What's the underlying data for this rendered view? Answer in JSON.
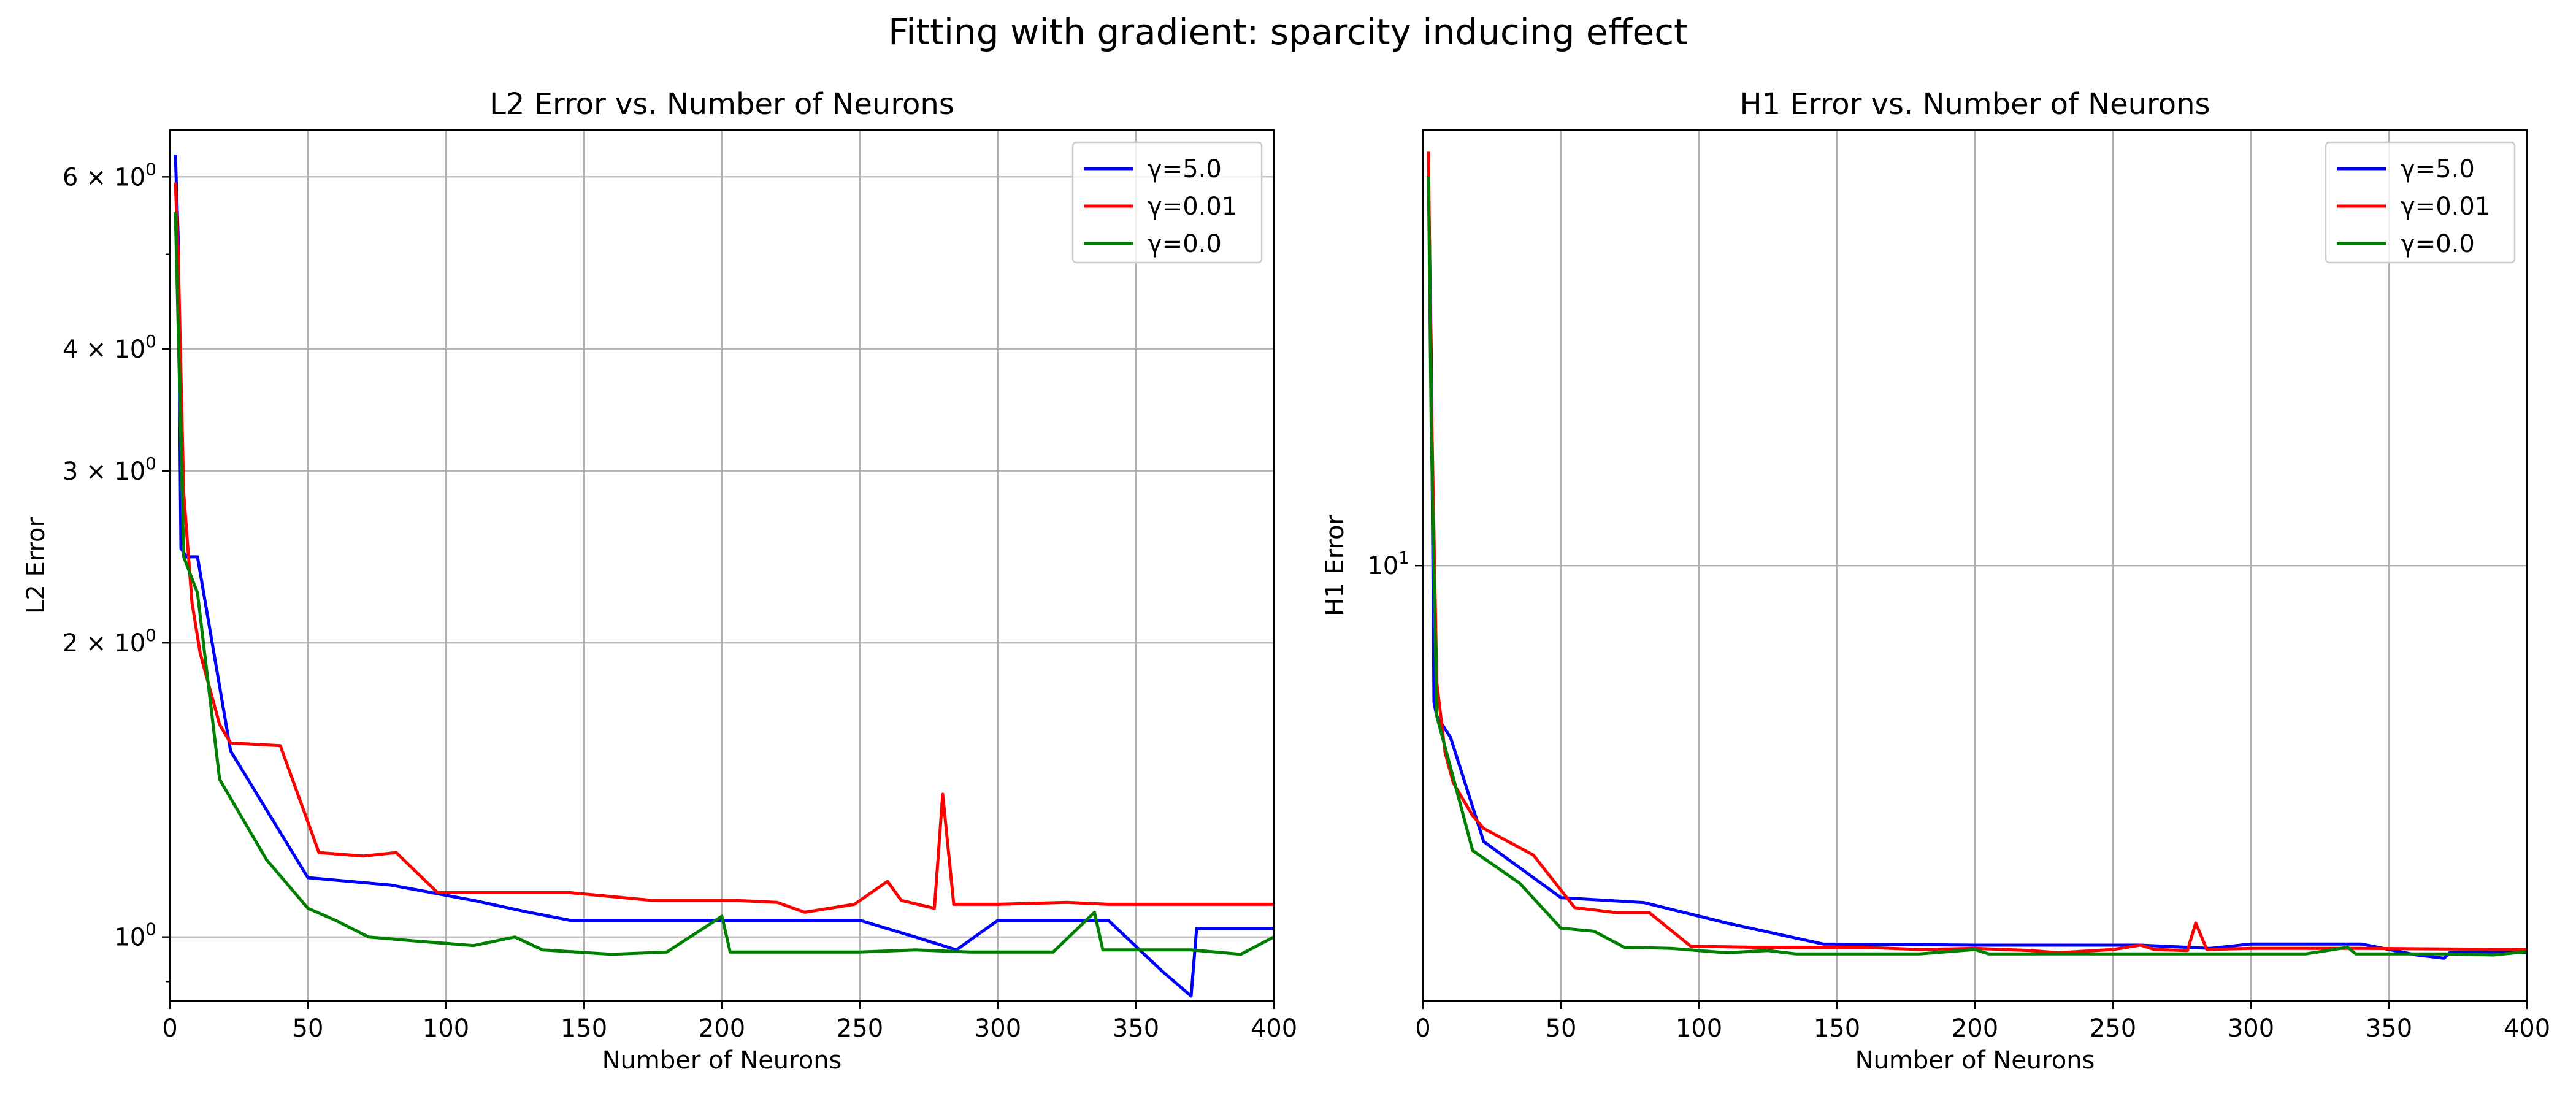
{
  "figure": {
    "suptitle": "Fitting with gradient: sparcity inducing effect"
  },
  "chart_data": [
    {
      "type": "line",
      "title": "L2 Error vs. Number of Neurons",
      "xlabel": "Number of Neurons",
      "ylabel": "L2 Error",
      "xlim": [
        0,
        400
      ],
      "ylim": [
        0.86,
        6.7
      ],
      "yscale": "log",
      "grid": true,
      "legend_position": "upper-right",
      "x_ticks": [
        {
          "value": 0,
          "label": "0"
        },
        {
          "value": 50,
          "label": "50"
        },
        {
          "value": 100,
          "label": "100"
        },
        {
          "value": 150,
          "label": "150"
        },
        {
          "value": 200,
          "label": "200"
        },
        {
          "value": 250,
          "label": "250"
        },
        {
          "value": 300,
          "label": "300"
        },
        {
          "value": 350,
          "label": "350"
        },
        {
          "value": 400,
          "label": "400"
        }
      ],
      "y_ticks": [
        {
          "value": 1,
          "label": "10^0",
          "mant": "",
          "base": "10",
          "exp": "0"
        },
        {
          "value": 2,
          "label": "2×10^0",
          "mant": "2 × ",
          "base": "10",
          "exp": "0"
        },
        {
          "value": 3,
          "label": "3×10^0",
          "mant": "3 × ",
          "base": "10",
          "exp": "0"
        },
        {
          "value": 4,
          "label": "4×10^0",
          "mant": "4 × ",
          "base": "10",
          "exp": "0"
        },
        {
          "value": 6,
          "label": "6×10^0",
          "mant": "6 × ",
          "base": "10",
          "exp": "0"
        }
      ],
      "minor_y_ticks": [
        0.9,
        5
      ],
      "series": [
        {
          "name": "γ=5.0",
          "color": "#0000ff",
          "points": [
            [
              2,
              6.3
            ],
            [
              3,
              5.2
            ],
            [
              4,
              2.5
            ],
            [
              6,
              2.45
            ],
            [
              10,
              2.45
            ],
            [
              22,
              1.55
            ],
            [
              50,
              1.15
            ],
            [
              80,
              1.13
            ],
            [
              95,
              1.11
            ],
            [
              110,
              1.09
            ],
            [
              130,
              1.06
            ],
            [
              145,
              1.04
            ],
            [
              170,
              1.04
            ],
            [
              200,
              1.04
            ],
            [
              230,
              1.04
            ],
            [
              250,
              1.04
            ],
            [
              270,
              1.0
            ],
            [
              285,
              0.97
            ],
            [
              300,
              1.04
            ],
            [
              320,
              1.04
            ],
            [
              340,
              1.04
            ],
            [
              360,
              0.92
            ],
            [
              370,
              0.87
            ],
            [
              372,
              1.02
            ],
            [
              390,
              1.02
            ],
            [
              400,
              1.02
            ]
          ]
        },
        {
          "name": "γ=0.01",
          "color": "#ff0000",
          "points": [
            [
              2,
              5.9
            ],
            [
              3,
              5.0
            ],
            [
              5,
              2.85
            ],
            [
              8,
              2.2
            ],
            [
              11,
              1.95
            ],
            [
              18,
              1.65
            ],
            [
              22,
              1.58
            ],
            [
              40,
              1.57
            ],
            [
              54,
              1.22
            ],
            [
              70,
              1.21
            ],
            [
              82,
              1.22
            ],
            [
              97,
              1.11
            ],
            [
              120,
              1.11
            ],
            [
              145,
              1.11
            ],
            [
              160,
              1.1
            ],
            [
              175,
              1.09
            ],
            [
              195,
              1.09
            ],
            [
              205,
              1.09
            ],
            [
              220,
              1.085
            ],
            [
              230,
              1.06
            ],
            [
              248,
              1.08
            ],
            [
              260,
              1.14
            ],
            [
              265,
              1.09
            ],
            [
              277,
              1.07
            ],
            [
              280,
              1.4
            ],
            [
              284,
              1.08
            ],
            [
              300,
              1.08
            ],
            [
              325,
              1.085
            ],
            [
              340,
              1.08
            ],
            [
              360,
              1.08
            ],
            [
              400,
              1.08
            ]
          ]
        },
        {
          "name": "γ=0.0",
          "color": "#008000",
          "points": [
            [
              2,
              5.5
            ],
            [
              3,
              4.2
            ],
            [
              5,
              2.45
            ],
            [
              10,
              2.25
            ],
            [
              18,
              1.45
            ],
            [
              35,
              1.2
            ],
            [
              50,
              1.07
            ],
            [
              60,
              1.04
            ],
            [
              72,
              1.0
            ],
            [
              90,
              0.99
            ],
            [
              110,
              0.98
            ],
            [
              125,
              1.0
            ],
            [
              135,
              0.97
            ],
            [
              160,
              0.96
            ],
            [
              180,
              0.965
            ],
            [
              200,
              1.05
            ],
            [
              203,
              0.965
            ],
            [
              230,
              0.965
            ],
            [
              250,
              0.965
            ],
            [
              270,
              0.97
            ],
            [
              290,
              0.965
            ],
            [
              320,
              0.965
            ],
            [
              335,
              1.06
            ],
            [
              338,
              0.97
            ],
            [
              350,
              0.97
            ],
            [
              370,
              0.97
            ],
            [
              388,
              0.96
            ],
            [
              400,
              1.0
            ]
          ]
        }
      ]
    },
    {
      "type": "line",
      "title": "H1 Error vs. Number of Neurons",
      "xlabel": "Number of Neurons",
      "ylabel": "H1 Error",
      "xlim": [
        0,
        400
      ],
      "ylim": [
        4.35,
        23
      ],
      "yscale": "log",
      "grid": true,
      "legend_position": "upper-right",
      "x_ticks": [
        {
          "value": 0,
          "label": "0"
        },
        {
          "value": 50,
          "label": "50"
        },
        {
          "value": 100,
          "label": "100"
        },
        {
          "value": 150,
          "label": "150"
        },
        {
          "value": 200,
          "label": "200"
        },
        {
          "value": 250,
          "label": "250"
        },
        {
          "value": 300,
          "label": "300"
        },
        {
          "value": 350,
          "label": "350"
        },
        {
          "value": 400,
          "label": "400"
        }
      ],
      "y_ticks": [
        {
          "value": 10,
          "label": "10^1",
          "mant": "",
          "base": "10",
          "exp": "1"
        }
      ],
      "minor_y_ticks": [],
      "series": [
        {
          "name": "γ=5.0",
          "color": "#0000ff",
          "points": [
            [
              2,
              21
            ],
            [
              3,
              15
            ],
            [
              4,
              7.7
            ],
            [
              5,
              7.5
            ],
            [
              10,
              7.2
            ],
            [
              22,
              5.9
            ],
            [
              50,
              5.3
            ],
            [
              80,
              5.25
            ],
            [
              110,
              5.05
            ],
            [
              145,
              4.85
            ],
            [
              200,
              4.84
            ],
            [
              260,
              4.84
            ],
            [
              285,
              4.81
            ],
            [
              300,
              4.85
            ],
            [
              340,
              4.85
            ],
            [
              360,
              4.75
            ],
            [
              370,
              4.72
            ],
            [
              372,
              4.77
            ],
            [
              400,
              4.77
            ]
          ]
        },
        {
          "name": "γ=0.01",
          "color": "#ff0000",
          "points": [
            [
              2,
              22
            ],
            [
              3,
              14
            ],
            [
              5,
              8.0
            ],
            [
              8,
              7.0
            ],
            [
              11,
              6.6
            ],
            [
              18,
              6.2
            ],
            [
              22,
              6.05
            ],
            [
              40,
              5.75
            ],
            [
              55,
              5.2
            ],
            [
              70,
              5.15
            ],
            [
              82,
              5.15
            ],
            [
              97,
              4.83
            ],
            [
              120,
              4.82
            ],
            [
              145,
              4.82
            ],
            [
              160,
              4.82
            ],
            [
              180,
              4.8
            ],
            [
              200,
              4.81
            ],
            [
              220,
              4.79
            ],
            [
              230,
              4.77
            ],
            [
              250,
              4.8
            ],
            [
              260,
              4.84
            ],
            [
              265,
              4.8
            ],
            [
              277,
              4.79
            ],
            [
              280,
              5.05
            ],
            [
              284,
              4.8
            ],
            [
              300,
              4.81
            ],
            [
              340,
              4.81
            ],
            [
              400,
              4.8
            ]
          ]
        },
        {
          "name": "γ=0.0",
          "color": "#008000",
          "points": [
            [
              2,
              21
            ],
            [
              3,
              13
            ],
            [
              5,
              7.5
            ],
            [
              10,
              6.8
            ],
            [
              18,
              5.8
            ],
            [
              35,
              5.45
            ],
            [
              50,
              5.0
            ],
            [
              62,
              4.97
            ],
            [
              73,
              4.82
            ],
            [
              90,
              4.81
            ],
            [
              110,
              4.77
            ],
            [
              125,
              4.79
            ],
            [
              135,
              4.76
            ],
            [
              180,
              4.76
            ],
            [
              200,
              4.8
            ],
            [
              205,
              4.76
            ],
            [
              250,
              4.76
            ],
            [
              300,
              4.76
            ],
            [
              320,
              4.76
            ],
            [
              335,
              4.82
            ],
            [
              338,
              4.76
            ],
            [
              370,
              4.76
            ],
            [
              388,
              4.75
            ],
            [
              400,
              4.78
            ]
          ]
        }
      ]
    }
  ]
}
